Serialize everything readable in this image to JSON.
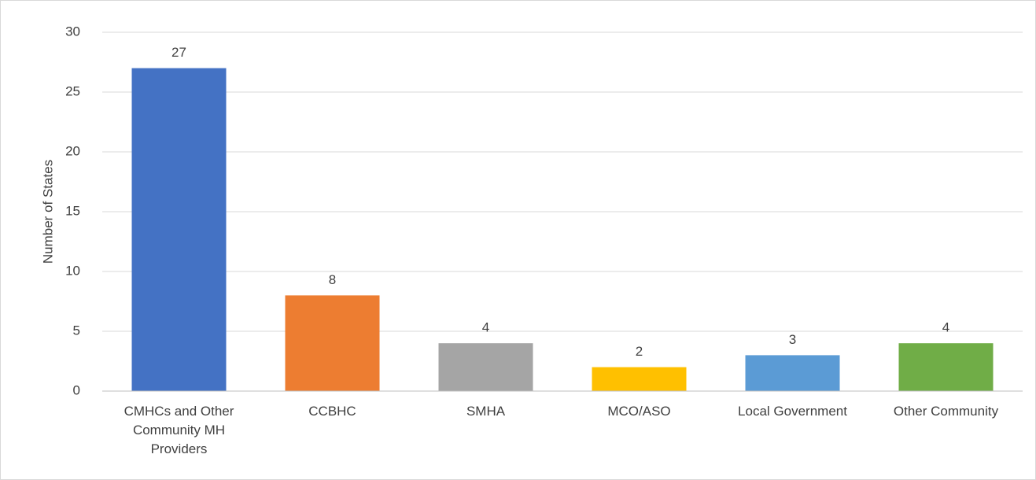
{
  "chart_data": {
    "type": "bar",
    "y_axis_label": "Number of States",
    "categories": [
      "CMHCs and Other Community MH Providers",
      "CCBHC",
      "SMHA",
      "MCO/ASO",
      "Local Government",
      "Other Community"
    ],
    "values": [
      27,
      8,
      4,
      2,
      3,
      4
    ],
    "colors": [
      "#4472c4",
      "#ed7d31",
      "#a5a5a5",
      "#ffc000",
      "#5b9bd5",
      "#70ad47"
    ],
    "ylim": [
      0,
      30
    ],
    "yticks": [
      0,
      5,
      10,
      15,
      20,
      25,
      30
    ],
    "grid": true
  }
}
